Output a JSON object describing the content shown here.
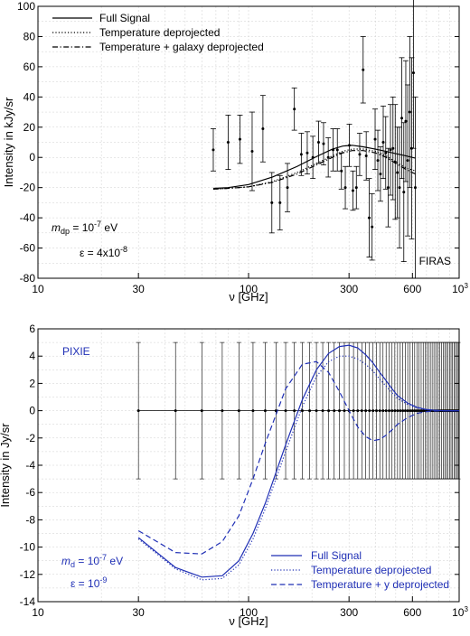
{
  "chart_data": [
    {
      "type": "line",
      "xscale": "log",
      "xlim": [
        10,
        1000
      ],
      "ylim": [
        -80,
        100
      ],
      "xlabel": "ν [GHz]",
      "ylabel": "Intensity in kJy/sr",
      "xticks": [
        10,
        30,
        100,
        300,
        600
      ],
      "xtick_labels": [
        "10",
        "30",
        "100",
        "300",
        "600"
      ],
      "xtick_last": {
        "base": "10",
        "exp": "3"
      },
      "yticks": [
        -80,
        -60,
        -40,
        -20,
        0,
        20,
        40,
        60,
        80,
        100
      ],
      "grid": true,
      "legend": "top-left",
      "experiment_label": "FIRAS",
      "annotations": {
        "mass": {
          "base": "m",
          "sub": "dp",
          "eq": " = 10",
          "exp": "-7",
          "unit": " eV"
        },
        "epsilon": {
          "text": "ε = 4x10",
          "exp": "-8"
        }
      },
      "series": [
        {
          "name": "Full Signal",
          "style": "solid",
          "x": [
            68,
            80,
            100,
            130,
            170,
            210,
            250,
            280,
            310,
            350,
            400,
            450,
            500,
            560,
            620
          ],
          "y": [
            -20.5,
            -20,
            -18,
            -13,
            -6,
            0.5,
            5.5,
            7.5,
            8,
            7,
            5.5,
            4,
            2.5,
            1,
            -0.5
          ]
        },
        {
          "name": "Temperature deprojected",
          "style": "dotted",
          "x": [
            68,
            80,
            100,
            130,
            170,
            210,
            250,
            280,
            310,
            350,
            400,
            450,
            500,
            560,
            620
          ],
          "y": [
            -21,
            -20.5,
            -19.5,
            -16,
            -10,
            -4,
            1,
            4,
            5.5,
            5.5,
            4,
            1,
            -3,
            -7,
            -9
          ]
        },
        {
          "name": "Temperature + galaxy deprojected",
          "style": "dashdot",
          "x": [
            68,
            80,
            100,
            130,
            170,
            210,
            250,
            280,
            310,
            350,
            400,
            450,
            500,
            560,
            620
          ],
          "y": [
            -21,
            -20.5,
            -19.5,
            -16.5,
            -11,
            -5,
            0,
            3,
            4.5,
            4.5,
            3,
            0,
            -4,
            -8,
            -11
          ]
        }
      ],
      "points": [
        {
          "x": 68,
          "y": 5,
          "err": 14
        },
        {
          "x": 80,
          "y": 10,
          "err": 18
        },
        {
          "x": 91,
          "y": 12,
          "err": 16
        },
        {
          "x": 104,
          "y": 4,
          "err": 26
        },
        {
          "x": 117,
          "y": 19,
          "err": 22
        },
        {
          "x": 129,
          "y": -30,
          "err": 20
        },
        {
          "x": 141,
          "y": -30,
          "err": 18
        },
        {
          "x": 153,
          "y": -20,
          "err": 16
        },
        {
          "x": 165,
          "y": 32,
          "err": 14
        },
        {
          "x": 178,
          "y": 2,
          "err": 14
        },
        {
          "x": 190,
          "y": 3,
          "err": 14
        },
        {
          "x": 202,
          "y": 0,
          "err": 14
        },
        {
          "x": 215,
          "y": 10,
          "err": 14
        },
        {
          "x": 227,
          "y": 9,
          "err": 14
        },
        {
          "x": 239,
          "y": 0,
          "err": 13
        },
        {
          "x": 252,
          "y": 5,
          "err": 14
        },
        {
          "x": 264,
          "y": 5,
          "err": 14
        },
        {
          "x": 276,
          "y": -9,
          "err": 12
        },
        {
          "x": 288,
          "y": -20,
          "err": 14
        },
        {
          "x": 301,
          "y": 8,
          "err": 14
        },
        {
          "x": 313,
          "y": -22,
          "err": 13
        },
        {
          "x": 325,
          "y": -20,
          "err": 14
        },
        {
          "x": 337,
          "y": 2,
          "err": 14
        },
        {
          "x": 350,
          "y": 58,
          "err": 22
        },
        {
          "x": 362,
          "y": 1,
          "err": 16
        },
        {
          "x": 374,
          "y": -40,
          "err": 26
        },
        {
          "x": 386,
          "y": -46,
          "err": 22
        },
        {
          "x": 399,
          "y": 12,
          "err": 20
        },
        {
          "x": 411,
          "y": -2,
          "err": 20
        },
        {
          "x": 423,
          "y": -11,
          "err": 18
        },
        {
          "x": 436,
          "y": 10,
          "err": 24
        },
        {
          "x": 448,
          "y": 3,
          "err": 24
        },
        {
          "x": 460,
          "y": -20,
          "err": 26
        },
        {
          "x": 472,
          "y": 5,
          "err": 30
        },
        {
          "x": 485,
          "y": 6,
          "err": 34
        },
        {
          "x": 497,
          "y": -3,
          "err": 38
        },
        {
          "x": 509,
          "y": -10,
          "err": 30
        },
        {
          "x": 521,
          "y": -20,
          "err": 40
        },
        {
          "x": 534,
          "y": 26,
          "err": 40
        },
        {
          "x": 546,
          "y": -23,
          "err": 46
        },
        {
          "x": 558,
          "y": 24,
          "err": 40
        },
        {
          "x": 570,
          "y": -2,
          "err": 50
        },
        {
          "x": 583,
          "y": 30,
          "err": 50
        },
        {
          "x": 595,
          "y": 6,
          "err": 60
        },
        {
          "x": 607,
          "y": 56,
          "err": 50
        },
        {
          "x": 619,
          "y": -20,
          "err": 60
        }
      ]
    },
    {
      "type": "line",
      "xscale": "log",
      "xlim": [
        10,
        1000
      ],
      "ylim": [
        -14,
        6
      ],
      "xlabel": "ν [GHz]",
      "ylabel": "Intensity in Jy/sr",
      "xticks": [
        10,
        30,
        100,
        300,
        600
      ],
      "xtick_labels": [
        "10",
        "30",
        "100",
        "300",
        "600"
      ],
      "xtick_last": {
        "base": "10",
        "exp": "3"
      },
      "yticks": [
        -14,
        -12,
        -10,
        -8,
        -6,
        -4,
        -2,
        0,
        2,
        4,
        6
      ],
      "grid": true,
      "legend": "bottom-right",
      "experiment_label": "PIXIE",
      "accent_color": "#1f2fb5",
      "annotations": {
        "mass": {
          "base": "m",
          "sub": "d",
          "eq": " = 10",
          "exp": "-7",
          "unit": " eV"
        },
        "epsilon": {
          "text": "ε = 10",
          "exp": "-9"
        }
      },
      "error_bars": {
        "start": 30,
        "step": 15,
        "end": 1000,
        "value": 0,
        "err": 5
      },
      "series": [
        {
          "name": "Full Signal",
          "style": "solid",
          "x": [
            30,
            45,
            60,
            75,
            90,
            105,
            120,
            150,
            180,
            210,
            240,
            270,
            300,
            330,
            360,
            390,
            420,
            450,
            480,
            510,
            570,
            630,
            690,
            750,
            810,
            870,
            930,
            1000
          ],
          "y": [
            -9.3,
            -11.5,
            -12.2,
            -12.1,
            -11.0,
            -9.0,
            -6.8,
            -2.5,
            0.8,
            3.0,
            4.2,
            4.7,
            4.8,
            4.6,
            4.1,
            3.5,
            2.8,
            2.2,
            1.6,
            1.1,
            0.55,
            0.25,
            0.1,
            0.04,
            0.01,
            0,
            0,
            0
          ]
        },
        {
          "name": "Temperature deprojected",
          "style": "dotted",
          "x": [
            30,
            45,
            60,
            75,
            90,
            105,
            120,
            150,
            180,
            210,
            240,
            270,
            300,
            330,
            360,
            390,
            420,
            450,
            480,
            510,
            570,
            630,
            690,
            750,
            810,
            870,
            930,
            1000
          ],
          "y": [
            -9.4,
            -11.6,
            -12.4,
            -12.3,
            -11.3,
            -9.4,
            -7.2,
            -3.0,
            0.3,
            2.5,
            3.6,
            4.0,
            4.0,
            3.8,
            3.4,
            2.9,
            2.3,
            1.8,
            1.3,
            0.9,
            0.45,
            0.2,
            0.08,
            0.03,
            0.01,
            0,
            0,
            0
          ]
        },
        {
          "name": "Temperature + y deprojected",
          "style": "dashed",
          "x": [
            30,
            45,
            60,
            75,
            90,
            105,
            120,
            150,
            180,
            210,
            240,
            270,
            300,
            330,
            360,
            390,
            420,
            450,
            480,
            510,
            570,
            630,
            690,
            750,
            810,
            870,
            930,
            1000
          ],
          "y": [
            -8.8,
            -10.4,
            -10.5,
            -9.6,
            -7.7,
            -5.0,
            -2.4,
            1.6,
            3.4,
            3.6,
            2.8,
            1.4,
            0.0,
            -1.2,
            -1.9,
            -2.2,
            -2.1,
            -1.8,
            -1.4,
            -1.0,
            -0.5,
            -0.2,
            -0.08,
            -0.03,
            -0.01,
            0,
            0,
            0
          ]
        }
      ]
    }
  ]
}
